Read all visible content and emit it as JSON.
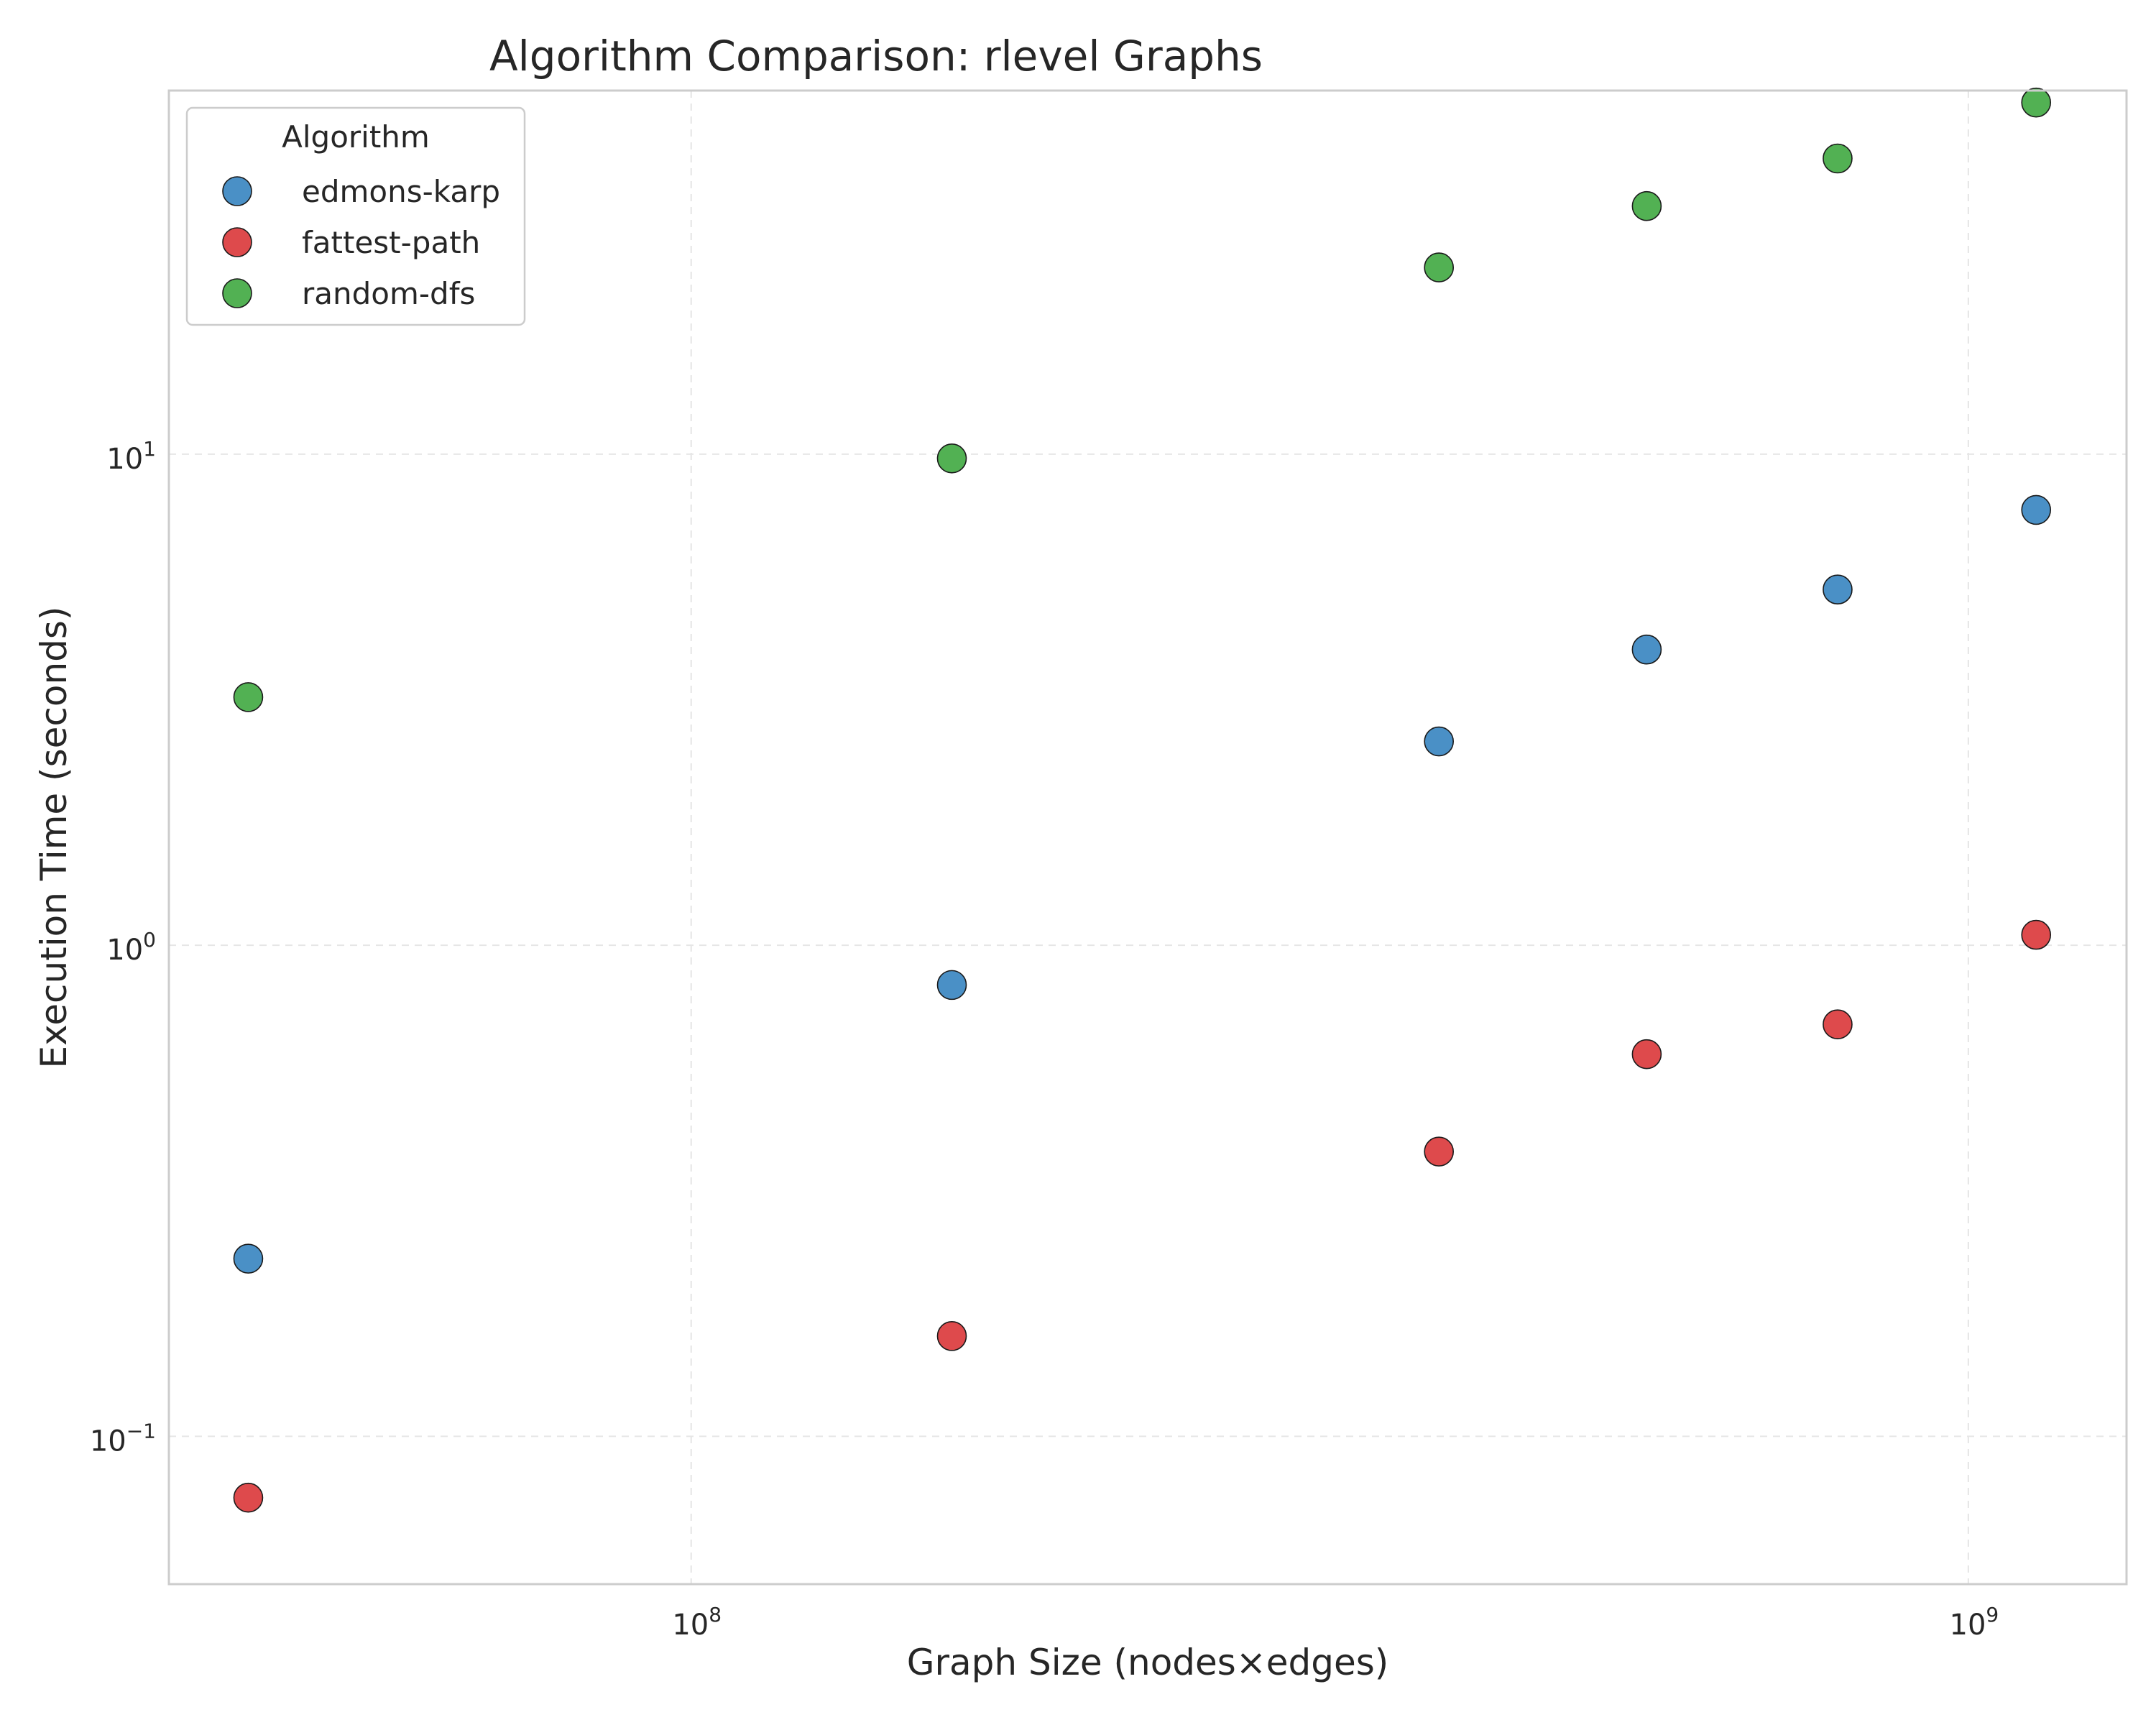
{
  "chart_data": {
    "type": "scatter",
    "title": "Algorithm Comparison: rlevel Graphs",
    "xlabel": "Graph Size (nodes×edges)",
    "ylabel": "Execution Time (seconds)",
    "xscale": "log",
    "yscale": "log",
    "xlim": [
      39000000,
      1330000000
    ],
    "ylim": [
      0.05,
      55
    ],
    "x_ticks": [
      {
        "value": 100000000,
        "base": "10",
        "exp": "8"
      },
      {
        "value": 1000000000,
        "base": "10",
        "exp": "9"
      }
    ],
    "y_ticks": [
      {
        "value": 0.1,
        "base": "10",
        "exp": "−1"
      },
      {
        "value": 1,
        "base": "10",
        "exp": "0"
      },
      {
        "value": 10,
        "base": "10",
        "exp": "1"
      }
    ],
    "grid": true,
    "legend": {
      "title": "Algorithm",
      "position": "top-left"
    },
    "series": [
      {
        "name": "edmons-karp",
        "color": "#4a90c6",
        "points": [
          {
            "x": 45000000,
            "y": 0.23
          },
          {
            "x": 160000000,
            "y": 0.83
          },
          {
            "x": 385000000,
            "y": 2.6
          },
          {
            "x": 560000000,
            "y": 4.0
          },
          {
            "x": 790000000,
            "y": 5.3
          },
          {
            "x": 1130000000,
            "y": 7.7
          }
        ]
      },
      {
        "name": "fattest-path",
        "color": "#de4a4c",
        "points": [
          {
            "x": 45000000,
            "y": 0.075
          },
          {
            "x": 160000000,
            "y": 0.16
          },
          {
            "x": 385000000,
            "y": 0.38
          },
          {
            "x": 560000000,
            "y": 0.6
          },
          {
            "x": 790000000,
            "y": 0.69
          },
          {
            "x": 1130000000,
            "y": 1.05
          }
        ]
      },
      {
        "name": "random-dfs",
        "color": "#52b153",
        "points": [
          {
            "x": 45000000,
            "y": 3.2
          },
          {
            "x": 160000000,
            "y": 9.8
          },
          {
            "x": 385000000,
            "y": 24
          },
          {
            "x": 560000000,
            "y": 32
          },
          {
            "x": 790000000,
            "y": 40
          },
          {
            "x": 1130000000,
            "y": 52
          }
        ]
      }
    ]
  }
}
